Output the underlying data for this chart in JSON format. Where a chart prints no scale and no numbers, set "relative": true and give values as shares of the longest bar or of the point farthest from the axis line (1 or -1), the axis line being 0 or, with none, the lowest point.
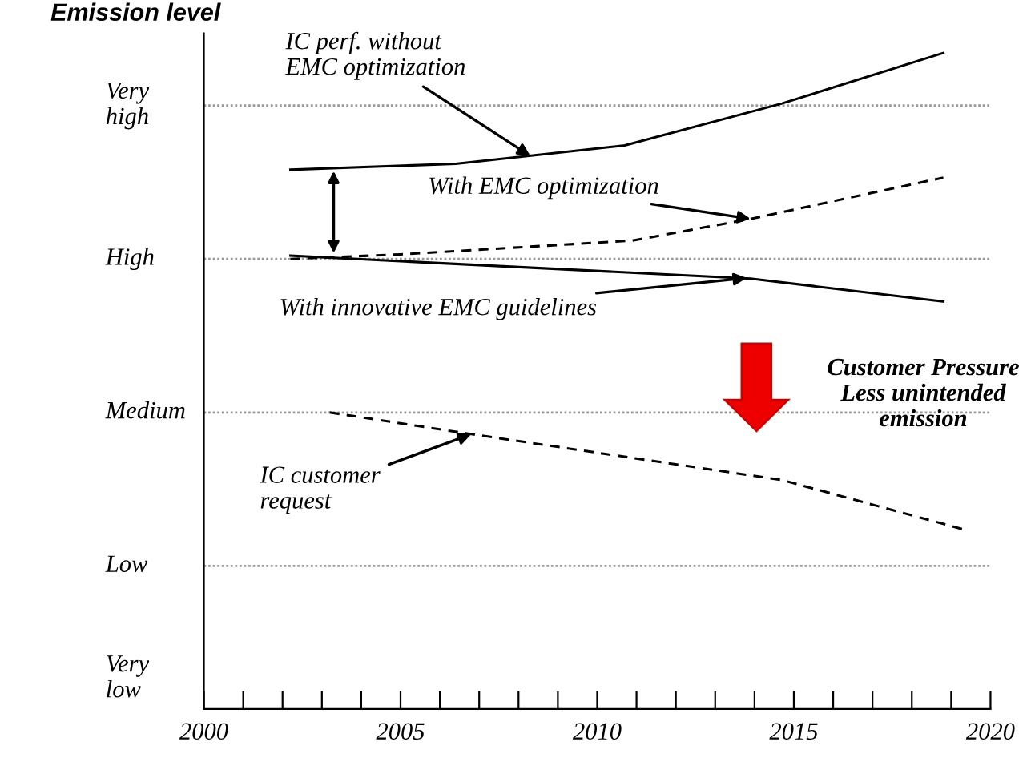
{
  "chart_data": {
    "type": "line",
    "relative": true,
    "ylabel": "Emission level",
    "xlim": [
      2000,
      2020
    ],
    "xticks": [
      2000,
      {
        "value": 2001,
        "label": null
      },
      {
        "value": 2002,
        "label": null
      },
      {
        "value": 2003,
        "label": null
      },
      {
        "value": 2004,
        "label": null
      },
      2005,
      {
        "value": 2006,
        "label": null
      },
      {
        "value": 2007,
        "label": null
      },
      {
        "value": 2008,
        "label": null
      },
      {
        "value": 2009,
        "label": null
      },
      2010,
      {
        "value": 2011,
        "label": null
      },
      {
        "value": 2012,
        "label": null
      },
      {
        "value": 2013,
        "label": null
      },
      {
        "value": 2014,
        "label": null
      },
      2015,
      {
        "value": 2016,
        "label": null
      },
      {
        "value": 2017,
        "label": null
      },
      {
        "value": 2018,
        "label": null
      },
      {
        "value": 2019,
        "label": null
      },
      2020
    ],
    "tick_labels": "x",
    "grid": false,
    "series": [
      {
        "color": "#000000",
        "line_style": "solid",
        "x": [
          2002.2,
          2006.4,
          2010.7,
          2014.7,
          2018.8
        ],
        "values": [
          0.822,
          0.831,
          0.859,
          0.923,
          1.0
        ]
      },
      {
        "color": "#000000",
        "line_style": "dashed",
        "x": [
          2002.2,
          2005.0,
          2010.9,
          2013.9,
          2018.8
        ],
        "values": [
          0.686,
          0.693,
          0.714,
          0.747,
          0.81
        ]
      },
      {
        "color": "#000000",
        "line_style": "solid",
        "x": [
          2002.2,
          2013.9,
          2018.8
        ],
        "values": [
          0.691,
          0.656,
          0.621
        ]
      },
      {
        "color": "#000000",
        "line_style": "dashed",
        "x": [
          2003.2,
          2006.8,
          2014.7,
          2019.3
        ],
        "values": [
          0.452,
          0.419,
          0.349,
          0.274
        ]
      }
    ],
    "ref_lines": [
      {
        "axis": "y",
        "value": 0.218,
        "label": "Low",
        "color": "#999999",
        "line_style": "dotted"
      },
      {
        "axis": "y",
        "value": 0.452,
        "label": "Medium",
        "color": "#999999",
        "line_style": "dotted"
      },
      {
        "axis": "y",
        "value": 0.686,
        "label": "High",
        "color": "#999999",
        "line_style": "dotted"
      },
      {
        "axis": "y",
        "value": 0.92,
        "label": "Very\nhigh",
        "color": "#999999",
        "line_style": "dotted"
      }
    ],
    "annotations": [
      {
        "text": "IC perf. without\nEMC optimization",
        "x": 2008.3,
        "y": 0.843
      },
      {
        "text": "With EMC optimization",
        "x": 2013.9,
        "y": 0.747
      },
      {
        "text": "With innovative EMC guidelines",
        "x": 2013.8,
        "y": 0.657
      },
      {
        "text": "IC customer\nrequest",
        "x": 2006.8,
        "y": 0.419
      },
      "Very\nlow",
      "Customer Pressure\nLess unintended\nemission"
    ]
  }
}
